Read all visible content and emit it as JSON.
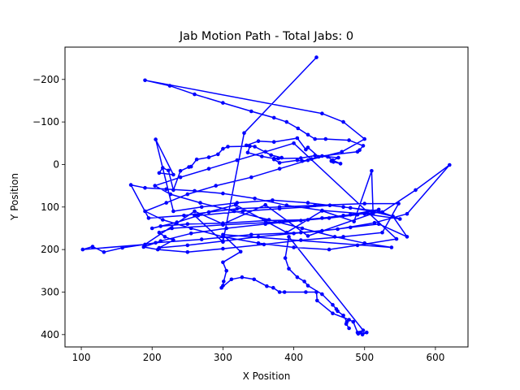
{
  "chart_data": {
    "type": "line",
    "title": "Jab Motion Path - Total Jabs: 0",
    "xlabel": "X Position",
    "ylabel": "Y Position",
    "xlim": [
      77,
      646
    ],
    "ylim": [
      429,
      -276
    ],
    "y_inverted": true,
    "grid": false,
    "legend": "none",
    "color": "#0000ff",
    "marker": "point",
    "xticks": [
      100,
      200,
      300,
      400,
      500,
      600
    ],
    "yticks": [
      -200,
      -100,
      0,
      100,
      200,
      300,
      400
    ],
    "xtick_labels": [
      "100",
      "200",
      "300",
      "400",
      "500",
      "600"
    ],
    "ytick_labels": [
      "−200",
      "−100",
      "0",
      "100",
      "200",
      "300",
      "400"
    ],
    "series": [
      {
        "x": [
          432,
          330,
          300,
          260,
          318,
          390,
          440,
          485,
          510,
          512,
          420,
          360,
          300,
          260,
          190,
          102,
          116,
          132,
          158,
          205,
          270,
          340,
          410,
          462,
          514,
          560,
          620,
          572,
          525,
          470,
          420,
          360,
          300,
          250,
          212,
          200,
          235,
          265,
          328,
          380,
          420,
          451,
          480,
          510,
          540,
          560,
          520,
          480,
          440,
          400,
          350,
          300,
          250,
          210,
          230,
          218,
          210,
          228,
          300,
          380,
          440,
          480,
          520,
          490,
          450,
          410,
          360,
          305,
          255,
          212,
          188,
          208,
          250,
          300,
          358,
          410,
          470,
          525,
          548,
          500,
          430,
          380,
          320,
          280,
          245,
          195,
          170,
          190,
          220,
          260,
          300,
          345,
          390,
          440,
          500,
          550,
          520,
          470,
          420,
          370,
          320,
          270,
          230,
          205,
          230,
          210,
          215,
          223,
          230,
          240,
          252,
          255,
          263,
          280,
          293,
          300,
          307,
          338,
          335,
          355,
          372,
          383,
          368,
          345,
          333,
          350,
          372,
          405,
          417,
          420,
          435,
          425,
          412,
          405,
          380,
          372,
          378,
          410,
          430,
          463,
          453,
          456,
          466,
          455,
          448,
          440,
          490,
          493,
          498,
          478,
          445,
          430,
          420,
          406,
          390,
          372,
          340,
          300,
          260,
          225,
          190,
          440,
          470,
          500,
          468,
          420,
          380,
          340,
          290,
          250,
          220,
          190,
          215,
          255,
          300,
          350,
          400,
          450,
          490,
          545,
          400,
          360,
          320,
          280,
          240,
          204,
          226,
          268,
          316,
          365,
          412,
          458,
          500,
          538,
          300,
          325,
          300,
          305,
          301,
          300,
          298,
          312,
          327,
          344,
          362,
          371,
          380,
          387,
          417,
          432,
          433,
          455,
          478,
          484,
          490,
          494,
          497,
          503,
          491,
          498,
          393,
          388,
          393,
          405,
          415,
          420,
          440,
          455,
          460,
          462,
          470,
          475,
          474,
          478
        ],
        "y": [
          -252,
          -74,
          182,
          120,
          95,
          160,
          109,
          134,
          15,
          115,
          168,
          95,
          140,
          110,
          188,
          200,
          193,
          206,
          196,
          184,
          176,
          165,
          160,
          152,
          137,
          116,
          1,
          60,
          112,
          120,
          130,
          132,
          138,
          140,
          145,
          150,
          136,
          120,
          110,
          104,
          100,
          96,
          102,
          110,
          122,
          170,
          140,
          148,
          156,
          162,
          170,
          180,
          190,
          196,
          178,
          170,
          160,
          150,
          142,
          135,
          126,
          118,
          106,
          118,
          126,
          132,
          140,
          150,
          162,
          180,
          194,
          200,
          206,
          198,
          188,
          178,
          170,
          160,
          92,
          92,
          96,
          100,
          104,
          112,
          120,
          126,
          48,
          55,
          58,
          62,
          68,
          80,
          96,
          108,
          116,
          128,
          110,
          100,
          90,
          84,
          90,
          100,
          110,
          -59,
          24,
          20,
          8,
          14,
          60,
          15,
          6,
          5,
          -12,
          -17,
          -24,
          -37,
          -42,
          -43,
          -28,
          -19,
          -14,
          -16,
          -22,
          -42,
          -45,
          -55,
          -53,
          -62,
          -35,
          -40,
          -18,
          -13,
          -8,
          -10,
          -4,
          -12,
          -14,
          -15,
          -21,
          -16,
          -8,
          -6,
          -2,
          -10,
          -18,
          -20,
          -30,
          -34,
          -44,
          -57,
          -60,
          -60,
          -70,
          -85,
          -100,
          -110,
          -125,
          -145,
          -165,
          -185,
          -198,
          -120,
          -100,
          -60,
          -30,
          -10,
          10,
          30,
          50,
          70,
          90,
          110,
          130,
          150,
          170,
          185,
          195,
          200,
          190,
          175,
          -50,
          -30,
          -10,
          10,
          30,
          50,
          70,
          90,
          110,
          130,
          150,
          170,
          185,
          195,
          165,
          205,
          230,
          250,
          275,
          285,
          290,
          270,
          265,
          270,
          286,
          290,
          300,
          300,
          300,
          300,
          320,
          350,
          365,
          370,
          395,
          395,
          400,
          395,
          398,
          390,
          170,
          220,
          245,
          265,
          275,
          285,
          305,
          330,
          340,
          345,
          355,
          370,
          375,
          385
        ]
      }
    ]
  }
}
